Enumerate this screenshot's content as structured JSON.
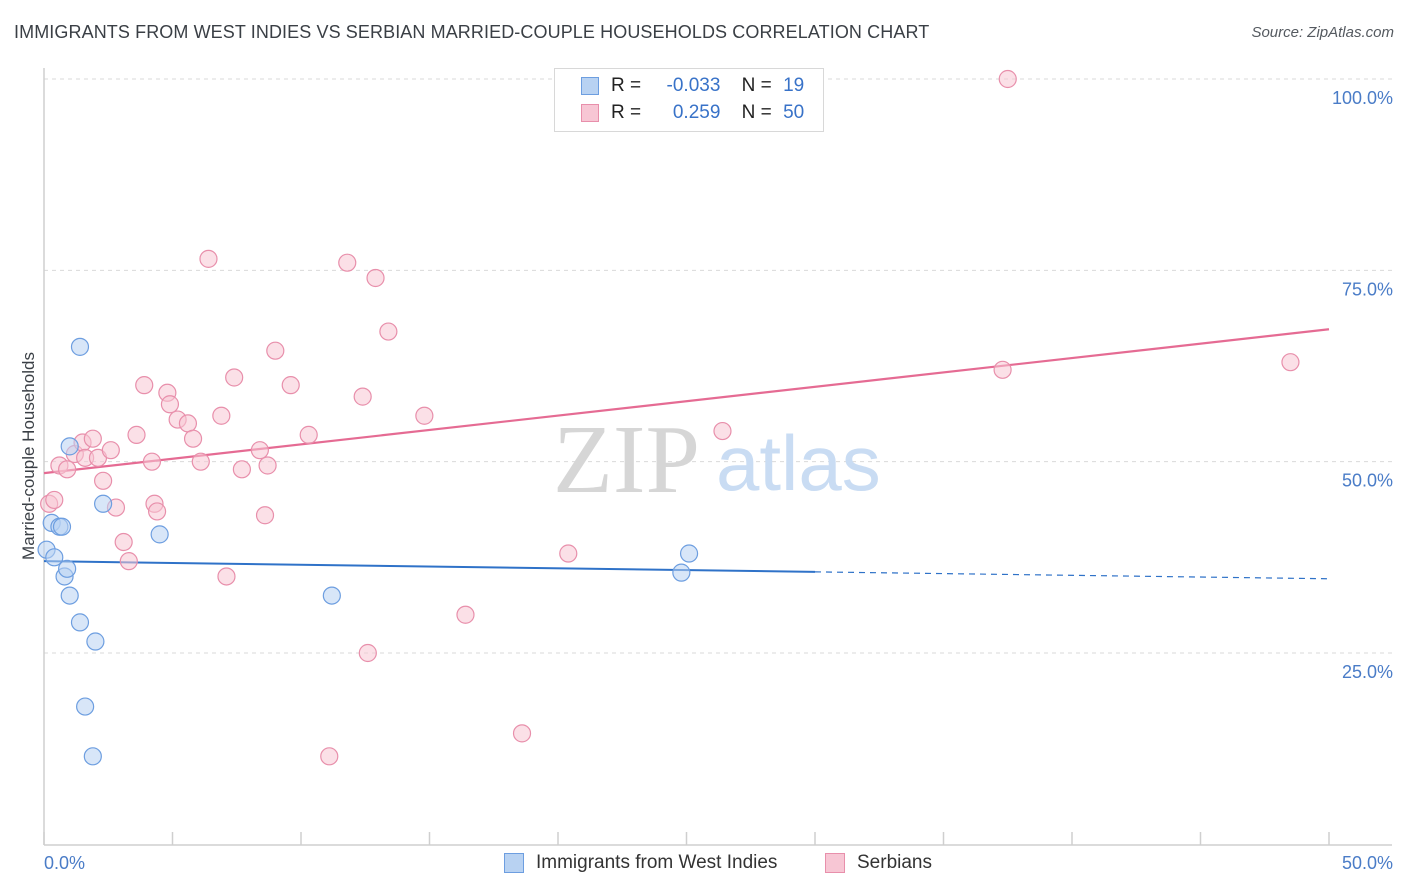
{
  "title": "IMMIGRANTS FROM WEST INDIES VS SERBIAN MARRIED-COUPLE HOUSEHOLDS CORRELATION CHART",
  "source": "Source: ZipAtlas.com",
  "watermark": {
    "zip": "ZIP",
    "atlas": "atlas"
  },
  "legend": {
    "rows": [
      {
        "r_label": "R =",
        "r_value": "-0.033",
        "n_label": "N =",
        "n_value": "19"
      },
      {
        "r_label": "R =",
        "r_value": "0.259",
        "n_label": "N =",
        "n_value": "50"
      }
    ]
  },
  "bottom_legend": [
    "Immigrants from West Indies",
    "Serbians"
  ],
  "colors": {
    "blue_fill": "#b8d2f2",
    "blue_stroke": "#6d9ee0",
    "blue_line": "#2f72c8",
    "pink_fill": "#f7c6d4",
    "pink_stroke": "#e88fab",
    "pink_line": "#e56b93",
    "grid": "#d9d9d9",
    "tick_text": "#4a7cc7"
  },
  "chart_data": {
    "type": "scatter",
    "title": "IMMIGRANTS FROM WEST INDIES VS SERBIAN MARRIED-COUPLE HOUSEHOLDS CORRELATION CHART",
    "xlabel": "",
    "ylabel": "Married-couple Households",
    "xlim": [
      0,
      50
    ],
    "ylim": [
      5,
      102
    ],
    "x_tick_labels": [
      "0.0%",
      "50.0%"
    ],
    "y_ticks": [
      25,
      50,
      75,
      100
    ],
    "y_tick_labels": [
      "25.0%",
      "50.0%",
      "75.0%",
      "100.0%"
    ],
    "grid": true,
    "legend_position": "top-center",
    "series": [
      {
        "name": "Immigrants from West Indies",
        "color": "#b8d2f2",
        "points": [
          [
            0.1,
            38.5
          ],
          [
            0.3,
            42.0
          ],
          [
            0.4,
            37.5
          ],
          [
            0.6,
            41.5
          ],
          [
            0.7,
            41.5
          ],
          [
            0.8,
            35.0
          ],
          [
            0.9,
            36.0
          ],
          [
            1.0,
            32.5
          ],
          [
            1.0,
            52.0
          ],
          [
            1.4,
            65.0
          ],
          [
            1.4,
            29.0
          ],
          [
            1.6,
            18.0
          ],
          [
            1.9,
            11.5
          ],
          [
            2.0,
            26.5
          ],
          [
            2.3,
            44.5
          ],
          [
            4.5,
            40.5
          ],
          [
            11.2,
            32.5
          ],
          [
            24.8,
            35.5
          ],
          [
            25.1,
            38.0
          ]
        ],
        "trend": {
          "x": [
            0,
            30
          ],
          "y": [
            37.0,
            35.6
          ],
          "dashed_extension_to_x": 50,
          "dashed_end_y": 34.7
        }
      },
      {
        "name": "Serbians",
        "color": "#f7c6d4",
        "points": [
          [
            0.2,
            44.5
          ],
          [
            0.4,
            45.0
          ],
          [
            0.6,
            49.5
          ],
          [
            0.9,
            49.0
          ],
          [
            1.2,
            51.0
          ],
          [
            1.5,
            52.5
          ],
          [
            1.6,
            50.5
          ],
          [
            1.9,
            53.0
          ],
          [
            2.1,
            50.5
          ],
          [
            2.3,
            47.5
          ],
          [
            2.6,
            51.5
          ],
          [
            2.8,
            44.0
          ],
          [
            3.1,
            39.5
          ],
          [
            3.3,
            37.0
          ],
          [
            3.6,
            53.5
          ],
          [
            3.9,
            60.0
          ],
          [
            4.2,
            50.0
          ],
          [
            4.3,
            44.5
          ],
          [
            4.4,
            43.5
          ],
          [
            4.8,
            59.0
          ],
          [
            4.9,
            57.5
          ],
          [
            5.2,
            55.5
          ],
          [
            5.6,
            55.0
          ],
          [
            5.8,
            53.0
          ],
          [
            6.1,
            50.0
          ],
          [
            6.4,
            76.5
          ],
          [
            6.9,
            56.0
          ],
          [
            7.1,
            35.0
          ],
          [
            7.4,
            61.0
          ],
          [
            7.7,
            49.0
          ],
          [
            8.4,
            51.5
          ],
          [
            8.6,
            43.0
          ],
          [
            8.7,
            49.5
          ],
          [
            9.0,
            64.5
          ],
          [
            9.6,
            60.0
          ],
          [
            10.3,
            53.5
          ],
          [
            11.8,
            76.0
          ],
          [
            12.4,
            58.5
          ],
          [
            12.6,
            25.0
          ],
          [
            12.9,
            74.0
          ],
          [
            13.4,
            67.0
          ],
          [
            11.1,
            11.5
          ],
          [
            14.8,
            56.0
          ],
          [
            16.4,
            30.0
          ],
          [
            18.6,
            14.5
          ],
          [
            20.4,
            38.0
          ],
          [
            26.4,
            54.0
          ],
          [
            37.3,
            62.0
          ],
          [
            37.5,
            100.0
          ],
          [
            48.5,
            63.0
          ]
        ],
        "trend": {
          "x": [
            0,
            50
          ],
          "y": [
            48.5,
            67.3
          ]
        }
      }
    ]
  }
}
